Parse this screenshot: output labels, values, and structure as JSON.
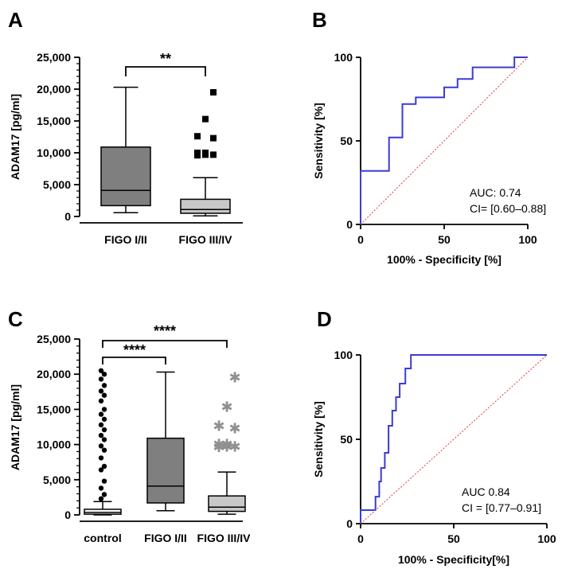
{
  "panels": {
    "A": {
      "label": "A",
      "ylabel": "ADAM17 [pg/ml]",
      "yticks": [
        "0",
        "5,000",
        "10,000",
        "15,000",
        "20,000",
        "25,000"
      ],
      "xlabels": [
        "FIGO I/II",
        "FIGO III/IV"
      ],
      "sig": "**"
    },
    "B": {
      "label": "B",
      "ylabel": "Sensitivity [%]",
      "xlabel": "100% - Specificity [%]",
      "ticks": [
        "0",
        "50",
        "100"
      ],
      "xticks": [
        "0",
        "50",
        "100"
      ],
      "auc": "AUC: 0.74",
      "ci": "CI= [0.60–0.88]"
    },
    "C": {
      "label": "C",
      "ylabel": "ADAM17 [pg/ml]",
      "yticks": [
        "0",
        "5,000",
        "10,000",
        "15,000",
        "20,000",
        "25,000"
      ],
      "xlabels": [
        "control",
        "FIGO I/II",
        "FIGO III/IV"
      ],
      "sig1": "****",
      "sig2": "****"
    },
    "D": {
      "label": "D",
      "ylabel": "Sensitivity [%]",
      "xlabel": "100% - Specificity[%]",
      "ticks": [
        "0",
        "50",
        "100"
      ],
      "xticks": [
        "0",
        "50",
        "100"
      ],
      "auc": "AUC 0.84",
      "ci": "CI = [0.77–0.91]"
    }
  },
  "chart_data": [
    {
      "panel": "A",
      "type": "box",
      "ylim": [
        0,
        25000
      ],
      "boxes": [
        {
          "name": "FIGO I/II",
          "min": 600,
          "q1": 1700,
          "median": 4100,
          "q3": 10900,
          "max": 20300,
          "color": "#7f7f7f",
          "outliers": []
        },
        {
          "name": "FIGO III/IV",
          "min": 100,
          "q1": 500,
          "median": 1100,
          "q3": 2700,
          "max": 6100,
          "color": "#c8c8c8",
          "outliers": [
            9600,
            9700,
            9700,
            10000,
            10000,
            12300,
            12600,
            15300,
            19500
          ]
        }
      ],
      "significance": [
        {
          "between": [
            "FIGO I/II",
            "FIGO III/IV"
          ],
          "label": "**"
        }
      ]
    },
    {
      "panel": "B",
      "type": "line",
      "title": "",
      "xlabel": "100% - Specificity [%]",
      "ylabel": "Sensitivity [%]",
      "xlim": [
        0,
        100
      ],
      "ylim": [
        0,
        100
      ],
      "series": [
        {
          "name": "ROC",
          "color": "#3b3bd6",
          "x": [
            0,
            0,
            17,
            17,
            25,
            25,
            33,
            33,
            50,
            50,
            58,
            58,
            67,
            67,
            92,
            92,
            100
          ],
          "y": [
            0,
            32,
            32,
            52,
            52,
            72,
            72,
            76,
            76,
            82,
            82,
            87,
            87,
            94,
            94,
            100,
            100
          ]
        },
        {
          "name": "reference",
          "color": "#e23b3b",
          "x": [
            0,
            100
          ],
          "y": [
            0,
            100
          ]
        }
      ]
    },
    {
      "panel": "C",
      "type": "box",
      "ylim": [
        0,
        25000
      ],
      "boxes": [
        {
          "name": "control",
          "min": 0,
          "q1": 100,
          "median": 350,
          "q3": 800,
          "max": 1900,
          "color": "#ffffff",
          "outliers": [
            2300,
            2900,
            3800,
            4800,
            6400,
            6900,
            8100,
            9200,
            9800,
            10700,
            11300,
            12100,
            12800,
            13600,
            14300,
            15000,
            16200,
            17000,
            17600,
            18400,
            19300,
            20000,
            20500
          ]
        },
        {
          "name": "FIGO I/II",
          "min": 600,
          "q1": 1700,
          "median": 4100,
          "q3": 10900,
          "max": 20300,
          "color": "#7f7f7f",
          "outliers": []
        },
        {
          "name": "FIGO III/IV",
          "min": 100,
          "q1": 500,
          "median": 1100,
          "q3": 2700,
          "max": 6100,
          "color": "#c8c8c8",
          "outliers": [
            9600,
            9700,
            9700,
            10000,
            10000,
            12300,
            12600,
            15300,
            19500
          ]
        }
      ],
      "significance": [
        {
          "between": [
            "control",
            "FIGO I/II"
          ],
          "label": "****"
        },
        {
          "between": [
            "control",
            "FIGO III/IV"
          ],
          "label": "****"
        }
      ]
    },
    {
      "panel": "D",
      "type": "line",
      "title": "",
      "xlabel": "100% - Specificity[%]",
      "ylabel": "Sensitivity [%]",
      "xlim": [
        0,
        100
      ],
      "ylim": [
        0,
        100
      ],
      "series": [
        {
          "name": "ROC",
          "color": "#3b3bd6",
          "x": [
            0,
            0,
            8,
            8,
            10,
            10,
            11,
            11,
            13,
            13,
            15,
            15,
            17,
            17,
            19,
            19,
            21,
            21,
            24,
            24,
            27,
            27,
            100
          ],
          "y": [
            0,
            8,
            8,
            16,
            16,
            25,
            25,
            33,
            33,
            42,
            42,
            58,
            58,
            67,
            67,
            75,
            75,
            83,
            83,
            92,
            92,
            100,
            100
          ]
        },
        {
          "name": "reference",
          "color": "#e23b3b",
          "x": [
            0,
            100
          ],
          "y": [
            0,
            100
          ]
        }
      ]
    }
  ]
}
